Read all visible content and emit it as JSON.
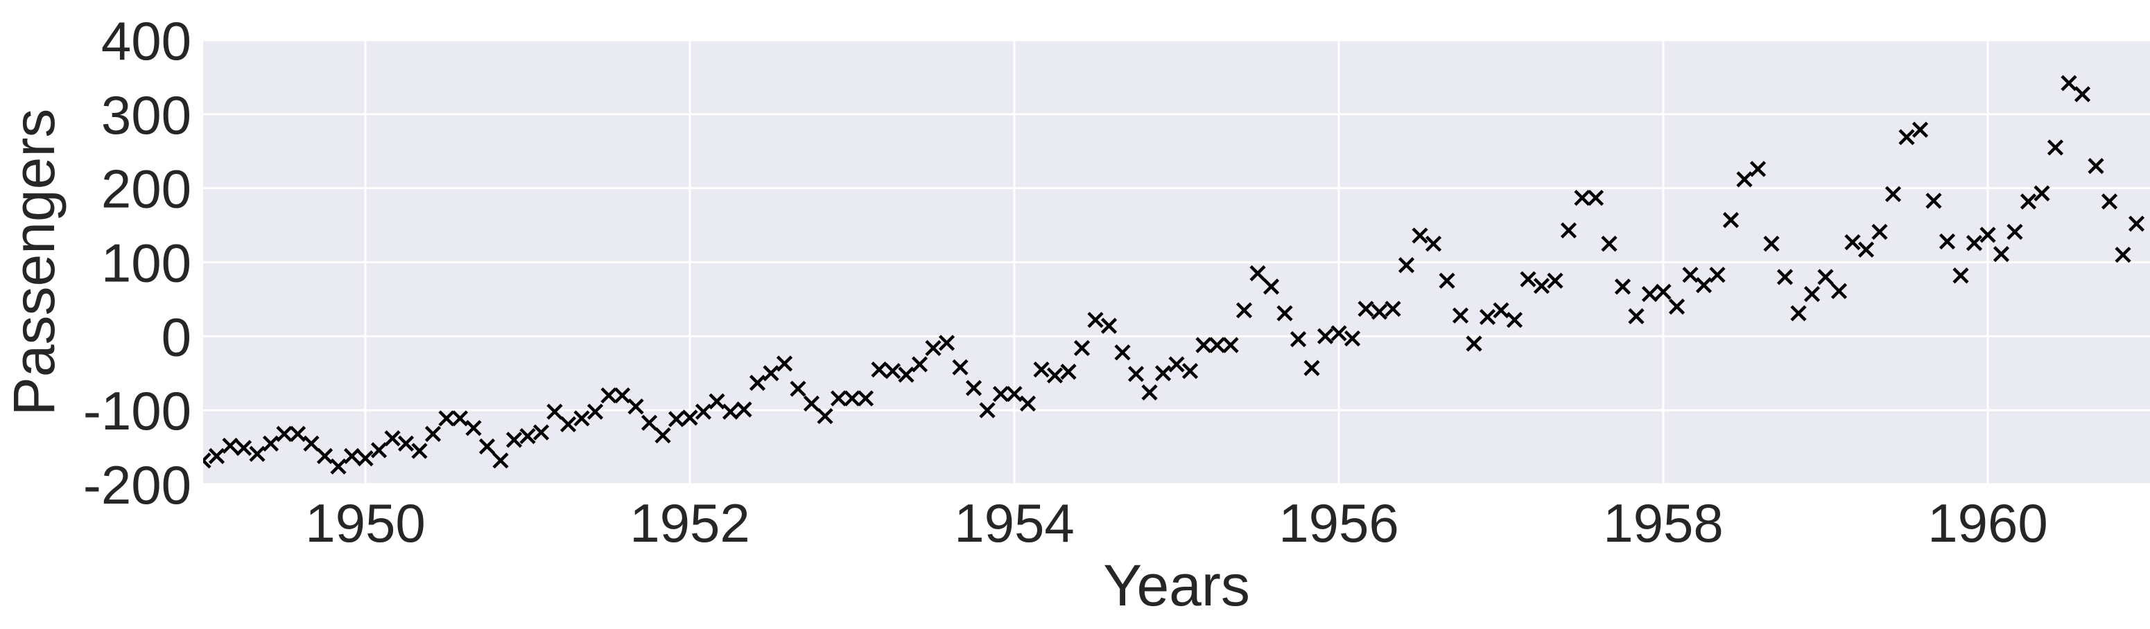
{
  "chart_data": {
    "type": "scatter",
    "title": "",
    "xlabel": "Years",
    "ylabel": "Passengers",
    "xlim": [
      1949.0,
      1961.0
    ],
    "ylim": [
      -200,
      400
    ],
    "xticks": [
      1950,
      1952,
      1954,
      1956,
      1958,
      1960
    ],
    "xtick_labels": [
      "1950",
      "1952",
      "1954",
      "1956",
      "1958",
      "1960"
    ],
    "yticks": [
      -200,
      -100,
      0,
      100,
      200,
      300,
      400
    ],
    "ytick_labels": [
      "-200",
      "-100",
      "0",
      "100",
      "200",
      "300",
      "400"
    ],
    "grid": true,
    "background": "#EAEAF2",
    "grid_color": "#FFFFFF",
    "marker": "x",
    "marker_color": "#000000",
    "x_start": 1949.0,
    "x_step": 0.0833333,
    "y": [
      -168,
      -162,
      -148,
      -151,
      -159,
      -145,
      -132,
      -132,
      -145,
      -162,
      -176,
      -162,
      -165,
      -154,
      -138,
      -145,
      -155,
      -132,
      -111,
      -111,
      -124,
      -149,
      -168,
      -140,
      -135,
      -130,
      -102,
      -119,
      -111,
      -102,
      -80,
      -80,
      -95,
      -117,
      -134,
      -112,
      -110,
      -102,
      -88,
      -102,
      -99,
      -63,
      -50,
      -37,
      -71,
      -91,
      -108,
      -84,
      -84,
      -84,
      -45,
      -47,
      -52,
      -38,
      -16,
      -9,
      -42,
      -70,
      -100,
      -78,
      -78,
      -91,
      -45,
      -53,
      -48,
      -16,
      22,
      14,
      -22,
      -51,
      -76,
      -50,
      -38,
      -47,
      -12,
      -12,
      -12,
      35,
      85,
      67,
      31,
      -4,
      -43,
      0,
      4,
      -3,
      37,
      33,
      37,
      96,
      136,
      125,
      75,
      28,
      -10,
      26,
      35,
      22,
      77,
      68,
      75,
      143,
      187,
      187,
      125,
      67,
      27,
      57,
      60,
      40,
      83,
      69,
      83,
      157,
      212,
      226,
      125,
      80,
      31,
      57,
      80,
      61,
      127,
      117,
      141,
      192,
      269,
      279,
      183,
      128,
      82,
      126,
      137,
      111,
      141,
      182,
      193,
      255,
      342,
      327,
      230,
      182,
      110,
      152
    ]
  }
}
